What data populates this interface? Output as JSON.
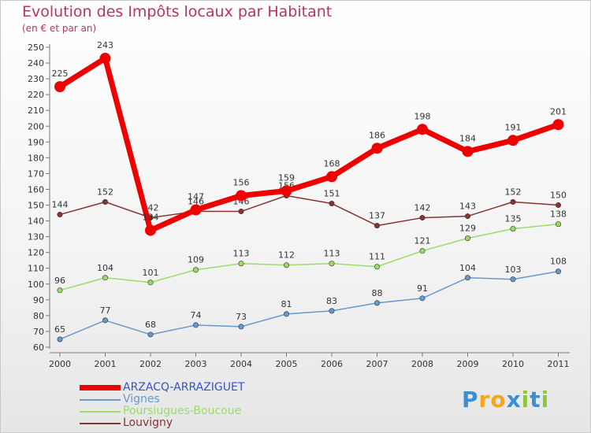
{
  "title": "Evolution des Impôts locaux par Habitant",
  "subtitle": "(en € et par an)",
  "logo": {
    "text": "Proxiti",
    "letters": [
      "P",
      "r",
      "o",
      "x",
      "i",
      "t",
      "i"
    ],
    "colors": [
      "#3a8fd8",
      "#f3a51d",
      "#f3a51d",
      "#3a8fd8",
      "#8cc63f",
      "#3a8fd8",
      "#8cc63f"
    ]
  },
  "chart_data": {
    "type": "line",
    "title": "Evolution des Impôts locaux par Habitant",
    "subtitle": "(en € et par an)",
    "x": [
      "2000",
      "2001",
      "2002",
      "2003",
      "2004",
      "2005",
      "2006",
      "2007",
      "2008",
      "2009",
      "2010",
      "2011"
    ],
    "ylim": [
      60,
      250
    ],
    "yticks": [
      60,
      70,
      80,
      90,
      100,
      110,
      120,
      130,
      140,
      150,
      160,
      170,
      180,
      190,
      200,
      210,
      220,
      230,
      240,
      250
    ],
    "grid": false,
    "legend_position": "bottom-left",
    "series": [
      {
        "name": "ARZACQ-ARRAZIGUET",
        "color": "#ee0000",
        "values": [
          225,
          243,
          134,
          147,
          156,
          159,
          168,
          186,
          198,
          184,
          191,
          201
        ],
        "labels": [
          "225",
          "243",
          "134",
          "147",
          "156",
          "159",
          "168",
          "186",
          "198",
          "184",
          "191",
          "201"
        ]
      },
      {
        "name": "Vignes",
        "color": "#6699cc",
        "values": [
          65,
          77,
          68,
          74,
          73,
          81,
          83,
          88,
          91,
          104,
          103,
          108
        ],
        "labels": [
          "65",
          "77",
          "68",
          "74",
          "73",
          "81",
          "83",
          "88",
          "91",
          "104",
          "103",
          "108"
        ]
      },
      {
        "name": "Poursiugues-Boucoue",
        "color": "#99dd66",
        "values": [
          96,
          104,
          101,
          109,
          113,
          112,
          113,
          111,
          121,
          129,
          135,
          138
        ],
        "labels": [
          "96",
          "104",
          "101",
          "109",
          "113",
          "112",
          "113",
          "111",
          "121",
          "129",
          "135",
          "138"
        ]
      },
      {
        "name": "Louvigny",
        "color": "#883333",
        "values": [
          144,
          152,
          142,
          146,
          146,
          156,
          151,
          137,
          142,
          143,
          152,
          150
        ],
        "labels": [
          "144",
          "152",
          "142",
          "146",
          "146",
          "156",
          "151",
          "137",
          "142",
          "143",
          "152",
          "150"
        ]
      }
    ]
  }
}
